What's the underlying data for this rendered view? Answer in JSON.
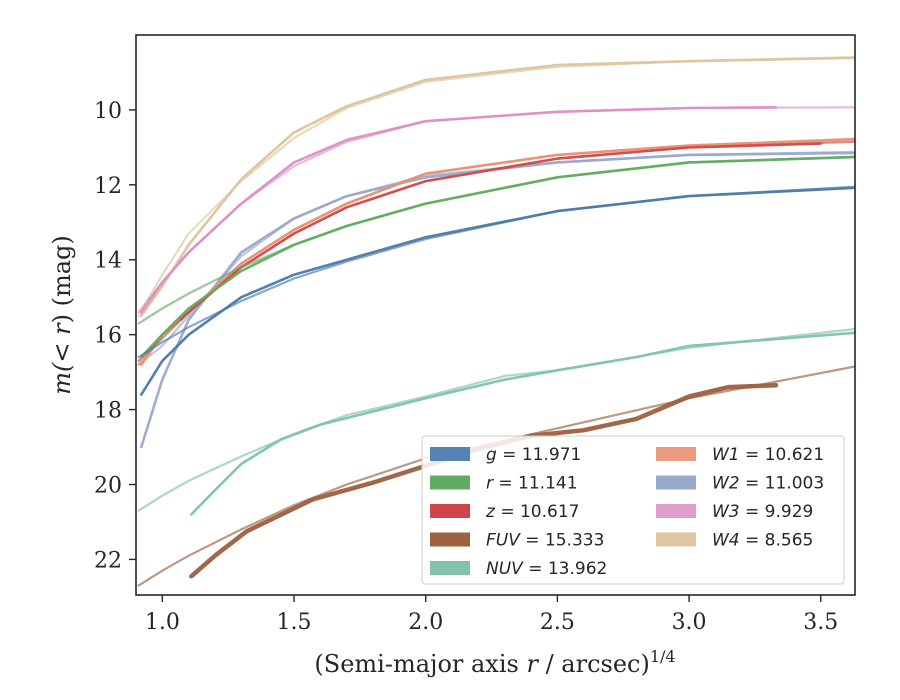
{
  "chart_data": {
    "type": "line",
    "xlabel_main": "(Semi-major axis ",
    "xlabel_var": "r",
    "xlabel_tail": " / arcsec)",
    "xlabel_sup": "1/4",
    "ylabel_prefix": "m(< ",
    "ylabel_var": "r",
    "ylabel_suffix": ") (mag)",
    "xlim": [
      0.9,
      3.63
    ],
    "ylim": [
      22.95,
      8.0
    ],
    "y_inverted": true,
    "grid": false,
    "legend_position": "lower-right",
    "xticks": [
      1.0,
      1.5,
      2.0,
      2.5,
      3.0,
      3.5
    ],
    "xtick_labels": [
      "1.0",
      "1.5",
      "2.0",
      "2.5",
      "3.0",
      "3.5"
    ],
    "yticks": [
      10,
      12,
      14,
      16,
      18,
      20,
      22
    ],
    "ytick_labels": [
      "10",
      "12",
      "14",
      "16",
      "18",
      "20",
      "22"
    ],
    "series": [
      {
        "band": "W4",
        "value": "8.565",
        "color": "#dcc49b",
        "model": {
          "x": [
            0.91,
            1.0,
            1.1,
            1.3,
            1.5,
            1.7,
            2.0,
            2.5,
            3.0,
            3.63
          ],
          "y": [
            15.5,
            14.4,
            13.3,
            11.9,
            10.75,
            9.95,
            9.25,
            8.85,
            8.7,
            8.62
          ]
        },
        "observed": {
          "x": [
            0.92,
            1.0,
            1.1,
            1.3,
            1.5,
            1.7,
            2.0,
            2.5,
            3.0,
            3.63
          ],
          "y": [
            15.5,
            14.7,
            13.6,
            11.85,
            10.6,
            9.9,
            9.2,
            8.8,
            8.7,
            8.6
          ]
        }
      },
      {
        "band": "W3",
        "value": "9.929",
        "color": "#de8fc4",
        "model": {
          "x": [
            0.91,
            1.0,
            1.1,
            1.3,
            1.5,
            1.7,
            2.0,
            2.5,
            3.0,
            3.63
          ],
          "y": [
            15.4,
            14.6,
            13.8,
            12.5,
            11.5,
            10.85,
            10.3,
            10.05,
            9.95,
            9.93
          ]
        },
        "observed": {
          "x": [
            0.92,
            1.0,
            1.1,
            1.3,
            1.5,
            1.7,
            2.0,
            2.5,
            3.0,
            3.33
          ],
          "y": [
            15.4,
            14.6,
            13.8,
            12.5,
            11.4,
            10.8,
            10.3,
            10.05,
            9.95,
            9.93
          ]
        }
      },
      {
        "band": "W2",
        "value": "11.003",
        "color": "#9aa8cb",
        "model": {
          "x": [
            0.91,
            1.0,
            1.1,
            1.3,
            1.5,
            1.7,
            2.0,
            2.5,
            3.0,
            3.63
          ],
          "y": [
            16.8,
            16.3,
            15.5,
            13.9,
            12.9,
            12.3,
            11.75,
            11.4,
            11.2,
            11.12
          ]
        },
        "observed": {
          "x": [
            0.92,
            1.0,
            1.1,
            1.3,
            1.5,
            1.7,
            2.0,
            2.5,
            3.0,
            3.63
          ],
          "y": [
            19.0,
            17.2,
            15.6,
            13.8,
            12.9,
            12.3,
            11.8,
            11.4,
            11.2,
            11.15
          ]
        }
      },
      {
        "band": "W1",
        "value": "10.621",
        "color": "#ea9073",
        "model": {
          "x": [
            0.91,
            1.0,
            1.1,
            1.3,
            1.5,
            1.7,
            2.0,
            2.5,
            3.0,
            3.63
          ],
          "y": [
            16.8,
            16.0,
            15.4,
            14.1,
            13.2,
            12.5,
            11.7,
            11.2,
            10.95,
            10.8
          ]
        },
        "observed": {
          "x": [
            0.92,
            1.0,
            1.1,
            1.3,
            1.5,
            1.7,
            2.0,
            2.5,
            3.0,
            3.63
          ],
          "y": [
            16.8,
            16.0,
            15.4,
            14.1,
            13.2,
            12.5,
            11.7,
            11.2,
            10.95,
            10.78
          ]
        }
      },
      {
        "band": "z",
        "value": "10.617",
        "color": "#d34b4c",
        "model": {
          "x": [
            0.91,
            1.0,
            1.1,
            1.3,
            1.5,
            1.7,
            2.0,
            2.5,
            3.0,
            3.63
          ],
          "y": [
            16.7,
            16.1,
            15.4,
            14.2,
            13.3,
            12.6,
            11.9,
            11.3,
            11.0,
            10.85
          ]
        },
        "observed": {
          "x": [
            1.07,
            1.1,
            1.3,
            1.5,
            1.7,
            2.0,
            2.5,
            3.0,
            3.5
          ],
          "y": [
            15.6,
            15.4,
            14.2,
            13.3,
            12.6,
            11.9,
            11.3,
            11.0,
            10.9
          ]
        }
      },
      {
        "band": "r",
        "value": "11.141",
        "color": "#5fac5f",
        "model": {
          "x": [
            0.91,
            1.0,
            1.1,
            1.3,
            1.5,
            1.7,
            2.0,
            2.5,
            3.0,
            3.63
          ],
          "y": [
            15.7,
            15.3,
            14.9,
            14.2,
            13.6,
            13.1,
            12.5,
            11.8,
            11.4,
            11.25
          ]
        },
        "observed": {
          "x": [
            0.92,
            1.0,
            1.1,
            1.3,
            1.5,
            1.7,
            2.0,
            2.5,
            3.0,
            3.63
          ],
          "y": [
            16.6,
            16.0,
            15.3,
            14.3,
            13.6,
            13.1,
            12.5,
            11.8,
            11.4,
            11.26
          ]
        }
      },
      {
        "band": "g",
        "value": "11.971",
        "color": "#4c78a8",
        "model": {
          "x": [
            0.91,
            1.0,
            1.1,
            1.3,
            1.5,
            1.7,
            2.0,
            2.5,
            3.0,
            3.63
          ],
          "y": [
            16.6,
            16.2,
            15.8,
            15.1,
            14.5,
            14.05,
            13.45,
            12.7,
            12.3,
            12.05
          ]
        },
        "observed": {
          "x": [
            0.92,
            1.0,
            1.1,
            1.3,
            1.5,
            1.7,
            2.0,
            2.5,
            3.0,
            3.63
          ],
          "y": [
            17.6,
            16.7,
            16.0,
            15.0,
            14.4,
            14.0,
            13.4,
            12.7,
            12.3,
            12.08
          ]
        }
      },
      {
        "band": "NUV",
        "value": "13.962",
        "color": "#7ec2ad",
        "model": {
          "x": [
            0.91,
            1.0,
            1.1,
            1.3,
            1.5,
            1.7,
            2.0,
            2.3,
            2.5,
            3.0,
            3.63
          ],
          "y": [
            20.7,
            20.3,
            19.9,
            19.25,
            18.65,
            18.15,
            17.65,
            17.1,
            16.95,
            16.35,
            15.85
          ]
        },
        "observed": {
          "x": [
            1.11,
            1.2,
            1.3,
            1.45,
            1.6,
            1.8,
            2.0,
            2.3,
            2.5,
            2.8,
            3.0,
            3.63
          ],
          "y": [
            20.8,
            20.15,
            19.45,
            18.8,
            18.4,
            18.05,
            17.7,
            17.2,
            16.95,
            16.6,
            16.3,
            15.95
          ]
        }
      },
      {
        "band": "FUV",
        "value": "15.333",
        "color": "#9c5f3f",
        "model": {
          "x": [
            0.91,
            1.0,
            1.1,
            1.3,
            1.5,
            1.7,
            2.0,
            2.5,
            3.0,
            3.63
          ],
          "y": [
            22.7,
            22.3,
            21.9,
            21.2,
            20.55,
            20.0,
            19.3,
            18.5,
            17.7,
            16.85
          ]
        },
        "observed": {
          "x": [
            1.11,
            1.2,
            1.32,
            1.57,
            1.8,
            2.0,
            2.2,
            2.4,
            2.6,
            2.8,
            3.0,
            3.15,
            3.33
          ],
          "y": [
            22.45,
            21.9,
            21.25,
            20.4,
            19.95,
            19.5,
            19.05,
            18.7,
            18.55,
            18.25,
            17.65,
            17.4,
            17.35
          ]
        }
      }
    ],
    "legend": [
      {
        "label": "g",
        "value": "11.971",
        "color": "#5584b3"
      },
      {
        "label": "r",
        "value": "11.141",
        "color": "#62ab62"
      },
      {
        "label": "z",
        "value": "10.617",
        "color": "#cf4548"
      },
      {
        "label": "FUV",
        "value": "15.333",
        "color": "#9e6140"
      },
      {
        "label": "NUV",
        "value": "13.962",
        "color": "#86c1ad"
      },
      {
        "label": "W1",
        "value": "10.621",
        "color": "#ec9b80"
      },
      {
        "label": "W2",
        "value": "11.003",
        "color": "#9aa8cb"
      },
      {
        "label": "W3",
        "value": "9.929",
        "color": "#e09fcb"
      },
      {
        "label": "W4",
        "value": "8.565",
        "color": "#ddc7a2"
      }
    ]
  }
}
